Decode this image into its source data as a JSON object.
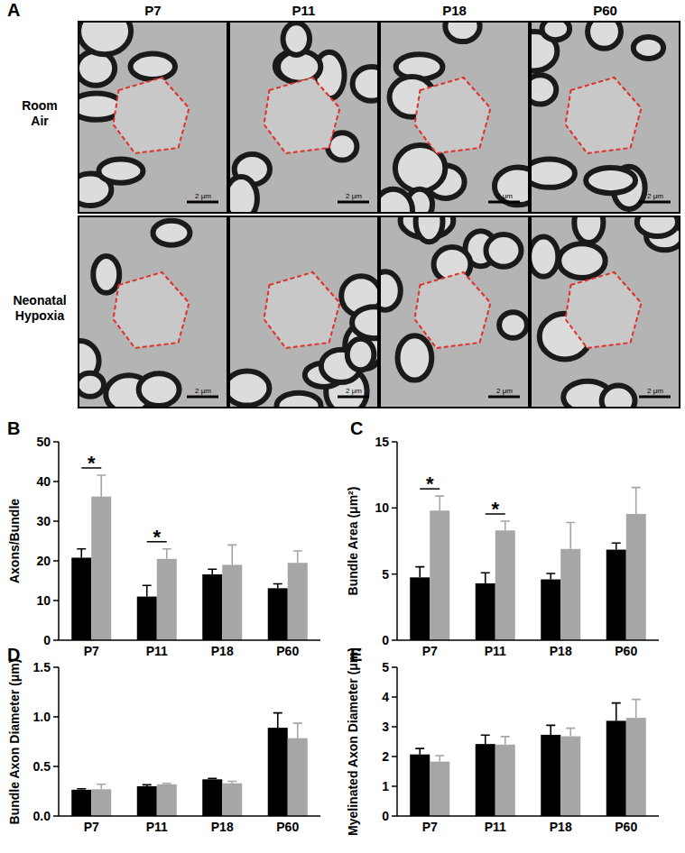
{
  "panel_a": {
    "label": "A",
    "columns": [
      "P7",
      "P11",
      "P18",
      "P60"
    ],
    "rows": [
      "Room Air",
      "Neonatal Hypoxia"
    ],
    "scale_bar": "2 μm"
  },
  "chart_data": [
    {
      "type": "bar",
      "title": "B",
      "y_label": "Axons/Bundle",
      "categories": [
        "P7",
        "P11",
        "P18",
        "P60"
      ],
      "series": [
        {
          "color": "#000000",
          "values": [
            20.8,
            11,
            16.6,
            13.1
          ],
          "errors": [
            2.2,
            2.8,
            1.3,
            1.1
          ]
        },
        {
          "color": "#a6a6a6",
          "values": [
            36.2,
            20.5,
            19,
            19.5
          ],
          "errors": [
            5.4,
            2.5,
            5,
            3
          ]
        }
      ],
      "ylim": [
        0,
        50
      ],
      "yticks": [
        0,
        10,
        20,
        30,
        40,
        50
      ],
      "annotations": [
        {
          "text": "*",
          "category": 0
        },
        {
          "text": "*",
          "category": 1
        }
      ]
    },
    {
      "type": "bar",
      "title": "C",
      "y_label": "Bundle Area (μm²)",
      "categories": [
        "P7",
        "P11",
        "P18",
        "P60"
      ],
      "series": [
        {
          "color": "#000000",
          "values": [
            4.75,
            4.3,
            4.6,
            6.85
          ],
          "errors": [
            0.8,
            0.8,
            0.45,
            0.5
          ]
        },
        {
          "color": "#a6a6a6",
          "values": [
            9.8,
            8.3,
            6.9,
            9.55
          ],
          "errors": [
            1.1,
            0.7,
            2,
            2
          ]
        }
      ],
      "ylim": [
        0,
        15
      ],
      "yticks": [
        0,
        5,
        10,
        15
      ],
      "annotations": [
        {
          "text": "*",
          "category": 0
        },
        {
          "text": "*",
          "category": 1
        }
      ]
    },
    {
      "type": "bar",
      "title": "D",
      "y_label": "Bundle Axon Diameter (μm)",
      "categories": [
        "P7",
        "P11",
        "P18",
        "P60"
      ],
      "series": [
        {
          "color": "#000000",
          "values": [
            0.265,
            0.3,
            0.37,
            0.89
          ],
          "errors": [
            0.01,
            0.015,
            0.01,
            0.15
          ]
        },
        {
          "color": "#a6a6a6",
          "values": [
            0.27,
            0.32,
            0.33,
            0.785
          ],
          "errors": [
            0.05,
            0.01,
            0.02,
            0.15
          ]
        }
      ],
      "ylim": [
        0,
        1.5
      ],
      "yticks": [
        {
          "value": 0,
          "label": "0.0"
        },
        0.5,
        {
          "value": 1,
          "label": "1.0"
        },
        1.5
      ]
    },
    {
      "type": "bar",
      "title": "E",
      "y_label": "Myelinated Axon Diameter (μm)",
      "categories": [
        "P7",
        "P11",
        "P18",
        "P60"
      ],
      "series": [
        {
          "color": "#000000",
          "values": [
            2.07,
            2.42,
            2.73,
            3.2
          ],
          "errors": [
            0.2,
            0.3,
            0.32,
            0.6
          ]
        },
        {
          "color": "#a6a6a6",
          "values": [
            1.83,
            2.4,
            2.68,
            3.3
          ],
          "errors": [
            0.2,
            0.27,
            0.27,
            0.62
          ]
        }
      ],
      "ylim": [
        0,
        5
      ],
      "yticks": [
        0,
        1,
        2,
        3,
        4,
        5
      ]
    }
  ]
}
